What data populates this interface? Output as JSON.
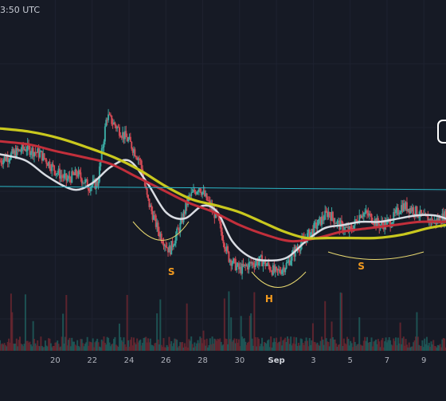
{
  "header": {
    "time_text": "3:50 UTC"
  },
  "colors": {
    "background": "#161a25",
    "up_candle": "#3aa7a0",
    "down_candle": "#d24a55",
    "ma_white": "#d9dce3",
    "ma_red": "#c22f3b",
    "ma_yellow": "#c9c81e",
    "neckline": "#2bb8c8",
    "pattern": "#f29a1f"
  },
  "chart_data": {
    "type": "candlestick",
    "title": "",
    "x_axis": {
      "tick_labels": [
        "20",
        "22",
        "24",
        "26",
        "28",
        "30",
        "Sep",
        "3",
        "5",
        "7",
        "9"
      ]
    },
    "price_path": [
      [
        17.0,
        0.38
      ],
      [
        18.4,
        0.42
      ],
      [
        19.2,
        0.4
      ],
      [
        20.0,
        0.35
      ],
      [
        20.6,
        0.32
      ],
      [
        21.2,
        0.34
      ],
      [
        21.8,
        0.3
      ],
      [
        22.3,
        0.31
      ],
      [
        22.8,
        0.52
      ],
      [
        23.4,
        0.48
      ],
      [
        24.0,
        0.44
      ],
      [
        24.6,
        0.38
      ],
      [
        25.0,
        0.26
      ],
      [
        25.6,
        0.16
      ],
      [
        26.2,
        0.1
      ],
      [
        26.8,
        0.18
      ],
      [
        27.2,
        0.26
      ],
      [
        27.8,
        0.3
      ],
      [
        28.2,
        0.26
      ],
      [
        28.8,
        0.2
      ],
      [
        29.4,
        0.08
      ],
      [
        30.0,
        0.04
      ],
      [
        30.6,
        0.06
      ],
      [
        31.2,
        0.07
      ],
      [
        31.6,
        0.05
      ],
      [
        32.0,
        0.03
      ],
      [
        32.6,
        0.06
      ],
      [
        33.0,
        0.1
      ],
      [
        33.6,
        0.14
      ],
      [
        34.2,
        0.18
      ],
      [
        34.8,
        0.22
      ],
      [
        35.4,
        0.18
      ],
      [
        36.0,
        0.16
      ],
      [
        36.6,
        0.22
      ],
      [
        37.0,
        0.21
      ],
      [
        37.6,
        0.18
      ],
      [
        38.2,
        0.19
      ],
      [
        38.8,
        0.24
      ],
      [
        39.4,
        0.23
      ],
      [
        40.0,
        0.2
      ],
      [
        40.6,
        0.19
      ],
      [
        41.2,
        0.21
      ]
    ],
    "moving_averages": [
      {
        "name": "",
        "color": "#d9dce3",
        "points": [
          [
            17.0,
            0.4
          ],
          [
            18.4,
            0.38
          ],
          [
            19.6,
            0.33
          ],
          [
            21.0,
            0.29
          ],
          [
            22.0,
            0.31
          ],
          [
            23.0,
            0.36
          ],
          [
            24.0,
            0.38
          ],
          [
            25.0,
            0.31
          ],
          [
            26.0,
            0.22
          ],
          [
            27.0,
            0.2
          ],
          [
            28.0,
            0.24
          ],
          [
            28.8,
            0.22
          ],
          [
            29.6,
            0.13
          ],
          [
            30.6,
            0.08
          ],
          [
            31.6,
            0.07
          ],
          [
            32.6,
            0.08
          ],
          [
            33.6,
            0.13
          ],
          [
            34.6,
            0.17
          ],
          [
            35.6,
            0.18
          ],
          [
            36.6,
            0.19
          ],
          [
            37.6,
            0.19
          ],
          [
            38.6,
            0.2
          ],
          [
            39.6,
            0.21
          ],
          [
            40.6,
            0.21
          ],
          [
            41.2,
            0.2
          ]
        ]
      },
      {
        "name": "",
        "color": "#c22f3b",
        "points": [
          [
            17.0,
            0.44
          ],
          [
            18.6,
            0.43
          ],
          [
            20.0,
            0.41
          ],
          [
            21.6,
            0.39
          ],
          [
            23.0,
            0.37
          ],
          [
            24.4,
            0.33
          ],
          [
            25.8,
            0.29
          ],
          [
            27.2,
            0.25
          ],
          [
            28.6,
            0.22
          ],
          [
            30.0,
            0.18
          ],
          [
            31.4,
            0.15
          ],
          [
            32.8,
            0.13
          ],
          [
            34.2,
            0.14
          ],
          [
            35.6,
            0.16
          ],
          [
            37.0,
            0.17
          ],
          [
            38.4,
            0.18
          ],
          [
            39.8,
            0.19
          ],
          [
            41.2,
            0.19
          ]
        ]
      },
      {
        "name": "",
        "color": "#c9c81e",
        "points": [
          [
            17.0,
            0.48
          ],
          [
            18.6,
            0.47
          ],
          [
            20.2,
            0.45
          ],
          [
            21.8,
            0.42
          ],
          [
            23.2,
            0.39
          ],
          [
            24.6,
            0.35
          ],
          [
            26.0,
            0.3
          ],
          [
            27.4,
            0.26
          ],
          [
            28.8,
            0.24
          ],
          [
            30.0,
            0.22
          ],
          [
            31.2,
            0.19
          ],
          [
            32.4,
            0.16
          ],
          [
            33.6,
            0.14
          ],
          [
            34.8,
            0.14
          ],
          [
            36.0,
            0.14
          ],
          [
            37.4,
            0.14
          ],
          [
            38.8,
            0.15
          ],
          [
            40.2,
            0.17
          ],
          [
            41.2,
            0.18
          ]
        ]
      }
    ],
    "neckline": {
      "from": [
        17.0,
        0.3
      ],
      "to": [
        41.2,
        0.29
      ]
    },
    "pattern_labels": [
      {
        "text": "S",
        "x": 26.3
      },
      {
        "text": "H",
        "x": 31.6
      },
      {
        "text": "S",
        "x": 36.6
      }
    ]
  }
}
